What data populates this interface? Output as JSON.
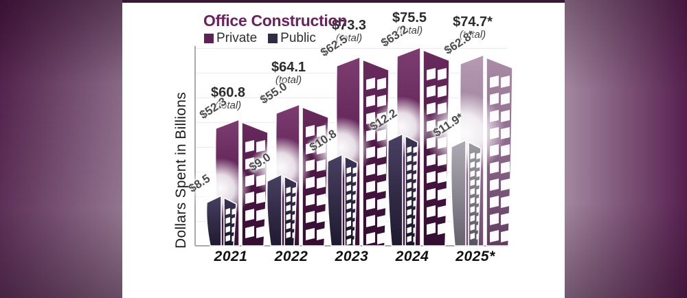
{
  "colors": {
    "title": "#6d2160",
    "private": "#5e2256",
    "public": "#312b45",
    "private_projected": "#9b7e99",
    "public_projected": "#8a8890"
  },
  "chart_data": {
    "type": "bar",
    "title": "Office Construction",
    "ylabel": "Dollars Spent in Billions",
    "legend_position": "top-left",
    "categories": [
      "2021",
      "2022",
      "2023",
      "2024",
      "2025*"
    ],
    "series": [
      {
        "name": "Private",
        "values": [
          52.3,
          55.0,
          62.5,
          63.2,
          62.8
        ]
      },
      {
        "name": "Public",
        "values": [
          8.5,
          9.0,
          10.8,
          12.2,
          11.9
        ]
      }
    ],
    "totals": [
      60.8,
      64.1,
      73.3,
      75.5,
      74.7
    ],
    "display": {
      "total_caption": "(total)",
      "groups": [
        {
          "year": "2021",
          "total_label": "$60.8",
          "private_label": "$52.3",
          "public_label": "$8.5",
          "projected": false
        },
        {
          "year": "2022",
          "total_label": "$64.1",
          "private_label": "$55.0",
          "public_label": "$9.0",
          "projected": false
        },
        {
          "year": "2023",
          "total_label": "$73.3",
          "private_label": "$62.5",
          "public_label": "$10.8",
          "projected": false
        },
        {
          "year": "2024",
          "total_label": "$75.5",
          "private_label": "$63.2",
          "public_label": "$12.2",
          "projected": false
        },
        {
          "year": "2025*",
          "total_label": "$74.7*",
          "private_label": "$62.8*",
          "public_label": "$11.9*",
          "projected": true
        }
      ]
    }
  }
}
